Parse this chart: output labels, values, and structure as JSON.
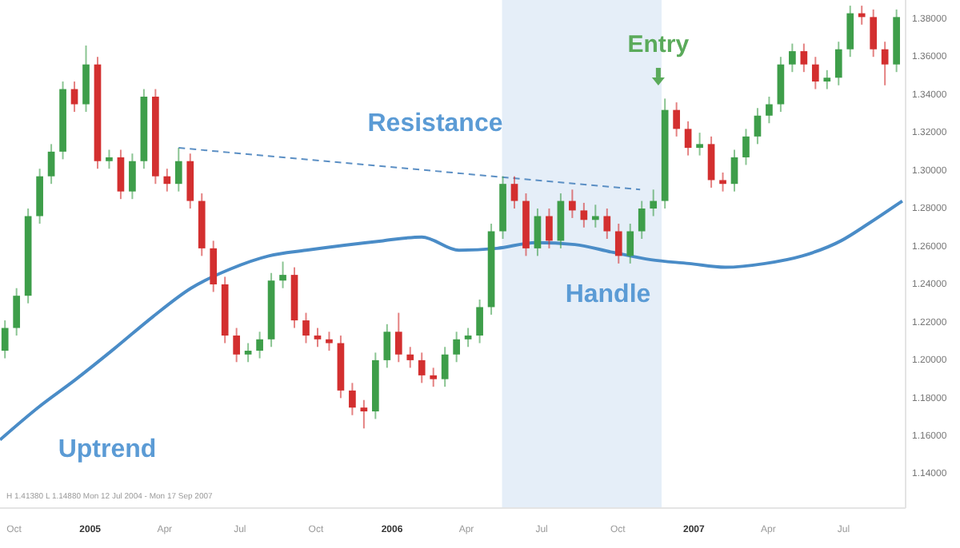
{
  "chart_data": {
    "type": "candlestick",
    "x": [
      "2004-09-20",
      "2004-10-04",
      "2004-10-18",
      "2004-11-01",
      "2004-11-15",
      "2004-11-29",
      "2004-12-13",
      "2004-12-27",
      "2005-01-10",
      "2005-01-24",
      "2005-02-07",
      "2005-02-21",
      "2005-03-07",
      "2005-03-21",
      "2005-04-04",
      "2005-04-18",
      "2005-05-02",
      "2005-05-16",
      "2005-05-30",
      "2005-06-13",
      "2005-06-27",
      "2005-07-11",
      "2005-07-25",
      "2005-08-08",
      "2005-08-22",
      "2005-09-05",
      "2005-09-19",
      "2005-10-03",
      "2005-10-17",
      "2005-10-31",
      "2005-11-14",
      "2005-11-28",
      "2005-12-12",
      "2005-12-26",
      "2006-01-09",
      "2006-01-23",
      "2006-02-06",
      "2006-02-20",
      "2006-03-06",
      "2006-03-20",
      "2006-04-03",
      "2006-04-17",
      "2006-05-01",
      "2006-05-15",
      "2006-05-29",
      "2006-06-12",
      "2006-06-26",
      "2006-07-10",
      "2006-07-24",
      "2006-08-07",
      "2006-08-21",
      "2006-09-04",
      "2006-09-18",
      "2006-10-02",
      "2006-10-16",
      "2006-10-30",
      "2006-11-13",
      "2006-11-27",
      "2006-12-11",
      "2006-12-25",
      "2007-01-08",
      "2007-01-22",
      "2007-02-05",
      "2007-02-19",
      "2007-03-05",
      "2007-03-19",
      "2007-04-02",
      "2007-04-16",
      "2007-04-30",
      "2007-05-14",
      "2007-05-28",
      "2007-06-11",
      "2007-06-25",
      "2007-07-09",
      "2007-07-23",
      "2007-08-06",
      "2007-08-20",
      "2007-09-03"
    ],
    "ohlc": [
      [
        1.205,
        1.221,
        1.201,
        1.217
      ],
      [
        1.217,
        1.238,
        1.213,
        1.234
      ],
      [
        1.234,
        1.28,
        1.23,
        1.276
      ],
      [
        1.276,
        1.301,
        1.272,
        1.297
      ],
      [
        1.297,
        1.314,
        1.293,
        1.31
      ],
      [
        1.31,
        1.347,
        1.306,
        1.343
      ],
      [
        1.343,
        1.347,
        1.331,
        1.335
      ],
      [
        1.335,
        1.366,
        1.331,
        1.356
      ],
      [
        1.356,
        1.36,
        1.301,
        1.305
      ],
      [
        1.305,
        1.311,
        1.301,
        1.307
      ],
      [
        1.307,
        1.311,
        1.285,
        1.289
      ],
      [
        1.289,
        1.309,
        1.285,
        1.305
      ],
      [
        1.305,
        1.343,
        1.301,
        1.339
      ],
      [
        1.339,
        1.343,
        1.293,
        1.297
      ],
      [
        1.297,
        1.301,
        1.289,
        1.293
      ],
      [
        1.293,
        1.312,
        1.289,
        1.305
      ],
      [
        1.305,
        1.309,
        1.28,
        1.284
      ],
      [
        1.284,
        1.288,
        1.255,
        1.259
      ],
      [
        1.259,
        1.263,
        1.236,
        1.24
      ],
      [
        1.24,
        1.244,
        1.209,
        1.213
      ],
      [
        1.213,
        1.217,
        1.199,
        1.203
      ],
      [
        1.203,
        1.209,
        1.199,
        1.205
      ],
      [
        1.205,
        1.215,
        1.201,
        1.211
      ],
      [
        1.211,
        1.246,
        1.207,
        1.242
      ],
      [
        1.242,
        1.252,
        1.238,
        1.245
      ],
      [
        1.245,
        1.249,
        1.217,
        1.221
      ],
      [
        1.221,
        1.225,
        1.209,
        1.213
      ],
      [
        1.213,
        1.217,
        1.207,
        1.211
      ],
      [
        1.211,
        1.215,
        1.205,
        1.209
      ],
      [
        1.209,
        1.213,
        1.18,
        1.184
      ],
      [
        1.184,
        1.188,
        1.171,
        1.175
      ],
      [
        1.175,
        1.179,
        1.164,
        1.173
      ],
      [
        1.173,
        1.204,
        1.169,
        1.2
      ],
      [
        1.2,
        1.219,
        1.196,
        1.215
      ],
      [
        1.215,
        1.225,
        1.199,
        1.203
      ],
      [
        1.203,
        1.207,
        1.196,
        1.2
      ],
      [
        1.2,
        1.204,
        1.188,
        1.192
      ],
      [
        1.192,
        1.196,
        1.186,
        1.19
      ],
      [
        1.19,
        1.207,
        1.186,
        1.203
      ],
      [
        1.203,
        1.215,
        1.199,
        1.211
      ],
      [
        1.211,
        1.217,
        1.207,
        1.213
      ],
      [
        1.213,
        1.232,
        1.209,
        1.228
      ],
      [
        1.228,
        1.272,
        1.224,
        1.268
      ],
      [
        1.268,
        1.297,
        1.264,
        1.293
      ],
      [
        1.293,
        1.297,
        1.28,
        1.284
      ],
      [
        1.284,
        1.288,
        1.255,
        1.259
      ],
      [
        1.259,
        1.28,
        1.255,
        1.276
      ],
      [
        1.276,
        1.28,
        1.259,
        1.263
      ],
      [
        1.263,
        1.288,
        1.259,
        1.284
      ],
      [
        1.284,
        1.29,
        1.275,
        1.279
      ],
      [
        1.279,
        1.283,
        1.27,
        1.274
      ],
      [
        1.274,
        1.282,
        1.27,
        1.276
      ],
      [
        1.276,
        1.28,
        1.264,
        1.268
      ],
      [
        1.268,
        1.272,
        1.251,
        1.255
      ],
      [
        1.255,
        1.272,
        1.251,
        1.268
      ],
      [
        1.268,
        1.284,
        1.264,
        1.28
      ],
      [
        1.28,
        1.29,
        1.276,
        1.284
      ],
      [
        1.284,
        1.338,
        1.28,
        1.332
      ],
      [
        1.332,
        1.336,
        1.318,
        1.322
      ],
      [
        1.322,
        1.326,
        1.308,
        1.312
      ],
      [
        1.312,
        1.32,
        1.308,
        1.314
      ],
      [
        1.314,
        1.318,
        1.291,
        1.295
      ],
      [
        1.295,
        1.299,
        1.289,
        1.293
      ],
      [
        1.293,
        1.311,
        1.289,
        1.307
      ],
      [
        1.307,
        1.322,
        1.303,
        1.318
      ],
      [
        1.318,
        1.333,
        1.314,
        1.329
      ],
      [
        1.329,
        1.339,
        1.325,
        1.335
      ],
      [
        1.335,
        1.36,
        1.331,
        1.356
      ],
      [
        1.356,
        1.367,
        1.352,
        1.363
      ],
      [
        1.363,
        1.367,
        1.352,
        1.356
      ],
      [
        1.356,
        1.36,
        1.343,
        1.347
      ],
      [
        1.347,
        1.353,
        1.343,
        1.349
      ],
      [
        1.349,
        1.368,
        1.345,
        1.364
      ],
      [
        1.364,
        1.387,
        1.36,
        1.383
      ],
      [
        1.383,
        1.387,
        1.377,
        1.381
      ],
      [
        1.381,
        1.385,
        1.36,
        1.364
      ],
      [
        1.364,
        1.368,
        1.345,
        1.356
      ],
      [
        1.356,
        1.385,
        1.352,
        1.381
      ]
    ],
    "series": [
      {
        "type": "line",
        "color": "#4a8cc7",
        "line_style": "solid",
        "x": [
          "2004-09-14",
          "2004-10-30",
          "2004-12-15",
          "2005-01-30",
          "2005-03-18",
          "2005-05-03",
          "2005-06-19",
          "2005-08-05",
          "2005-09-19",
          "2005-12-21",
          "2006-02-06",
          "2006-03-23",
          "2006-05-08",
          "2006-06-24",
          "2006-08-10",
          "2006-09-24",
          "2006-11-10",
          "2006-12-26",
          "2007-02-08",
          "2007-03-28",
          "2007-05-12",
          "2007-06-28",
          "2007-07-31",
          "2007-09-10"
        ],
        "values": [
          1.158,
          1.175,
          1.19,
          1.206,
          1.223,
          1.238,
          1.248,
          1.255,
          1.258,
          1.263,
          1.265,
          1.258,
          1.259,
          1.262,
          1.261,
          1.257,
          1.253,
          1.251,
          1.249,
          1.251,
          1.255,
          1.263,
          1.272,
          1.284
        ]
      },
      {
        "type": "line",
        "color": "#5b8fc4",
        "line_style": "dashed",
        "x": [
          "2005-04-18",
          "2006-10-28"
        ],
        "values": [
          1.312,
          1.29
        ]
      }
    ],
    "bands": [
      {
        "axis": "x",
        "from": "2006-05-14",
        "to": "2006-11-23",
        "color": "#cfe0f3"
      }
    ],
    "annotations": [
      "Resistance",
      {
        "text": "Entry",
        "x": "2006-11-19",
        "y": 1.366
      },
      "Handle",
      "Uptrend",
      "H 1.41380  L 1.14880  Mon 12 Jul 2004 - Mon 17 Sep 2007"
    ],
    "xlim": [
      "2004-09-14",
      "2007-09-14"
    ],
    "xticks": [
      {
        "value": "2004-10-01",
        "label": "Oct"
      },
      {
        "value": "2005-01-01",
        "label": "2005"
      },
      {
        "value": "2005-04-01",
        "label": "Apr"
      },
      {
        "value": "2005-07-01",
        "label": "Jul"
      },
      {
        "value": "2005-10-01",
        "label": "Oct"
      },
      {
        "value": "2006-01-01",
        "label": "2006"
      },
      {
        "value": "2006-04-01",
        "label": "Apr"
      },
      {
        "value": "2006-07-01",
        "label": "Jul"
      },
      {
        "value": "2006-10-01",
        "label": "Oct"
      },
      {
        "value": "2007-01-01",
        "label": "2007"
      },
      {
        "value": "2007-04-01",
        "label": "Apr"
      },
      {
        "value": "2007-07-01",
        "label": "Jul"
      }
    ],
    "ylim": [
      1.122,
      1.39
    ],
    "yticks": [
      {
        "value": 1.14,
        "label": "1.14000"
      },
      {
        "value": 1.16,
        "label": "1.16000"
      },
      {
        "value": 1.18,
        "label": "1.18000"
      },
      {
        "value": 1.2,
        "label": "1.20000"
      },
      {
        "value": 1.22,
        "label": "1.22000"
      },
      {
        "value": 1.24,
        "label": "1.24000"
      },
      {
        "value": 1.26,
        "label": "1.26000"
      },
      {
        "value": 1.28,
        "label": "1.28000"
      },
      {
        "value": 1.3,
        "label": "1.30000"
      },
      {
        "value": 1.32,
        "label": "1.32000"
      },
      {
        "value": 1.34,
        "label": "1.34000"
      },
      {
        "value": 1.36,
        "label": "1.36000"
      },
      {
        "value": 1.38,
        "label": "1.38000"
      }
    ],
    "grid": false
  }
}
